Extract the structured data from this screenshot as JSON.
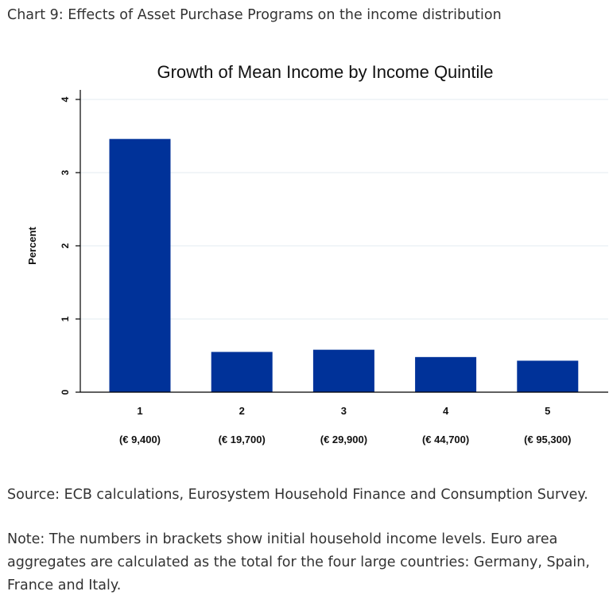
{
  "caption": "Chart 9: Effects of Asset Purchase Programs on the income distribution",
  "source": "Source: ECB calculations, Eurosystem Household Finance and Consumption Survey.",
  "note": "Note: The numbers in brackets show initial household income levels. Euro area aggregates are calculated as the total for the four large countries: Germany, Spain, France and Italy.",
  "colors": {
    "bar": "#003299",
    "grid": "#e3ebf0"
  },
  "chart_data": {
    "type": "bar",
    "title": "Growth of Mean Income by Income Quintile",
    "ylabel": "Percent",
    "xlabel": "",
    "categories": [
      "1",
      "2",
      "3",
      "4",
      "5"
    ],
    "category_sublabels": [
      "(€ 9,400)",
      "(€ 19,700)",
      "(€ 29,900)",
      "(€ 44,700)",
      "(€ 95,300)"
    ],
    "values": [
      3.46,
      0.55,
      0.58,
      0.48,
      0.43
    ],
    "ylim": [
      0,
      4
    ],
    "yticks": [
      "0",
      "1",
      "2",
      "3",
      "4"
    ],
    "grid": true,
    "legend": "none"
  }
}
